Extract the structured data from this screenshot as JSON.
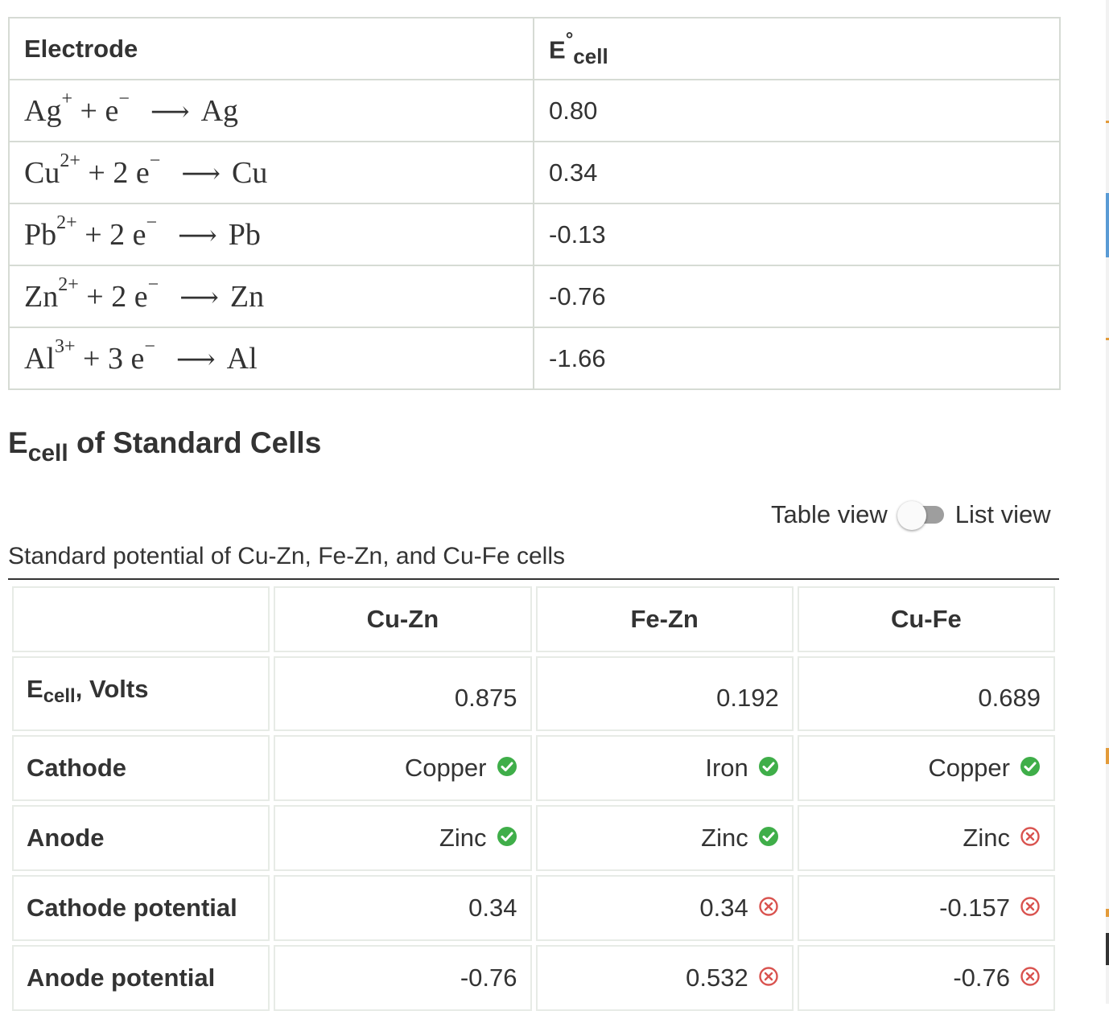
{
  "electrode_table": {
    "headers": {
      "electrode": "Electrode",
      "ecell_symbol": "E",
      "ecell_sup": "°",
      "ecell_sub": "cell"
    },
    "rows": [
      {
        "ion": "Ag",
        "charge": "+",
        "coef": "",
        "electrons": "e",
        "electron_sign": "−",
        "product": "Ag",
        "value": "0.80"
      },
      {
        "ion": "Cu",
        "charge": "2+",
        "coef": "2",
        "electrons": "e",
        "electron_sign": "−",
        "product": "Cu",
        "value": "0.34"
      },
      {
        "ion": "Pb",
        "charge": "2+",
        "coef": "2",
        "electrons": "e",
        "electron_sign": "−",
        "product": "Pb",
        "value": "-0.13"
      },
      {
        "ion": "Zn",
        "charge": "2+",
        "coef": "2",
        "electrons": "e",
        "electron_sign": "−",
        "product": "Zn",
        "value": "-0.76"
      },
      {
        "ion": "Al",
        "charge": "3+",
        "coef": "3",
        "electrons": "e",
        "electron_sign": "−",
        "product": "Al",
        "value": "-1.66"
      }
    ]
  },
  "section": {
    "title_e": "E",
    "title_sub": "cell",
    "title_rest": " of Standard Cells"
  },
  "view_toggle": {
    "left_label": "Table view",
    "right_label": "List view"
  },
  "cells_table": {
    "caption": "Standard potential of Cu-Zn, Fe-Zn, and Cu-Fe cells",
    "columns": [
      "Cu-Zn",
      "Fe-Zn",
      "Cu-Fe"
    ],
    "rows": [
      {
        "label_main": "E",
        "label_sub": "cell",
        "label_rest": ", Volts",
        "cells": [
          {
            "value": "0.875",
            "status": "none"
          },
          {
            "value": "0.192",
            "status": "none"
          },
          {
            "value": "0.689",
            "status": "none"
          }
        ]
      },
      {
        "label_main": "Cathode",
        "label_sub": "",
        "label_rest": "",
        "cells": [
          {
            "value": "Copper",
            "status": "correct"
          },
          {
            "value": "Iron",
            "status": "correct"
          },
          {
            "value": "Copper",
            "status": "correct"
          }
        ]
      },
      {
        "label_main": "Anode",
        "label_sub": "",
        "label_rest": "",
        "cells": [
          {
            "value": "Zinc",
            "status": "correct"
          },
          {
            "value": "Zinc",
            "status": "correct"
          },
          {
            "value": "Zinc",
            "status": "incorrect"
          }
        ]
      },
      {
        "label_main": "Cathode potential",
        "label_sub": "",
        "label_rest": "",
        "cells": [
          {
            "value": "0.34",
            "status": "none"
          },
          {
            "value": "0.34",
            "status": "incorrect"
          },
          {
            "value": "-0.157",
            "status": "incorrect"
          }
        ]
      },
      {
        "label_main": "Anode potential",
        "label_sub": "",
        "label_rest": "",
        "cells": [
          {
            "value": "-0.76",
            "status": "none"
          },
          {
            "value": "0.532",
            "status": "incorrect"
          },
          {
            "value": "-0.76",
            "status": "incorrect"
          }
        ]
      }
    ]
  },
  "colors": {
    "correct": "#3fae49",
    "incorrect": "#d9534f",
    "border": "#d6dbd4",
    "text": "#333333"
  }
}
